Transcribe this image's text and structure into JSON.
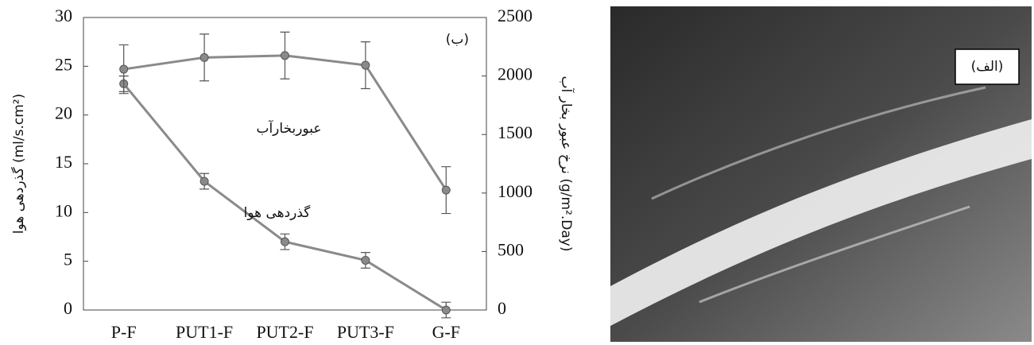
{
  "chart_data": {
    "type": "line",
    "categories": [
      "P-F",
      "PUT1-F",
      "PUT2-F",
      "PUT3-F",
      "G-F"
    ],
    "series": [
      {
        "name": "گذردهی هوا",
        "color": "#8a8a8a",
        "values": [
          23.2,
          13.2,
          7.0,
          5.1,
          0
        ],
        "errors": [
          0.8,
          0.8,
          0.8,
          0.8,
          0.8
        ]
      },
      {
        "name": "عبوربخارآب",
        "color": "#8a8a8a",
        "axis": "y2",
        "values": [
          2058,
          2158,
          2175,
          2092,
          1025
        ],
        "errors": [
          208,
          200,
          200,
          200,
          200
        ]
      }
    ],
    "ylabel": "گذردهی هوا (ml/s.cm²)",
    "y2label": "نرخ عبور بخار آب (g/m².Day)",
    "panel_label": "(ب)",
    "ylim": [
      0,
      30
    ],
    "yticks": [
      0,
      5,
      10,
      15,
      20,
      25,
      30
    ],
    "y2lim": [
      0,
      2500
    ],
    "y2ticks": [
      0,
      500,
      1000,
      1500,
      2000,
      2500
    ]
  },
  "image": {
    "label": "(الف)"
  }
}
